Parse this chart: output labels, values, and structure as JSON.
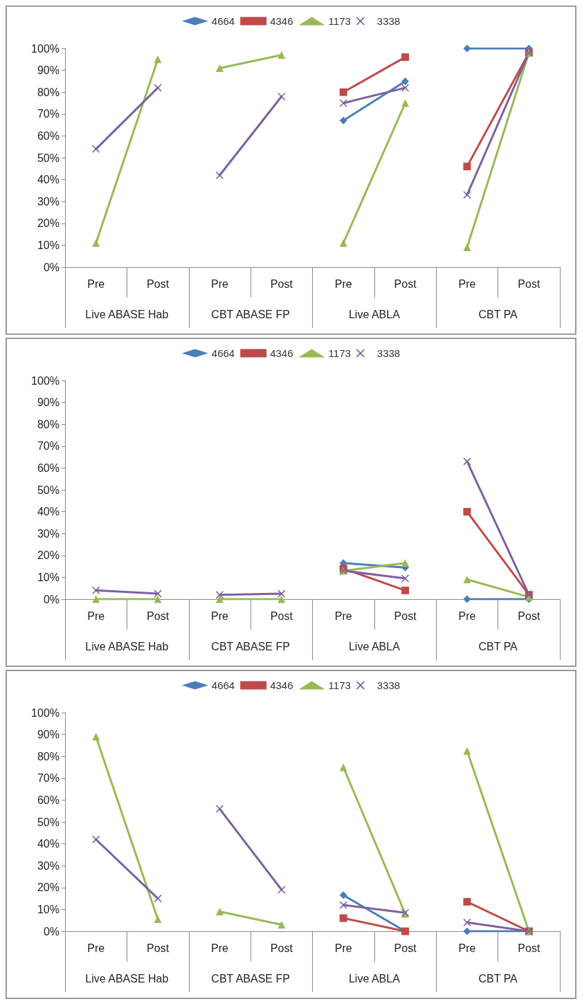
{
  "chart_data": [
    {
      "type": "line",
      "categories": [
        "Pre",
        "Post",
        "Pre",
        "Post",
        "Pre",
        "Post",
        "Pre",
        "Post"
      ],
      "annotations": [
        "Live ABASE Hab",
        "CBT ABASE FP",
        "Live ABLA",
        "CBT PA"
      ],
      "ylim": [
        0,
        100
      ],
      "yticks": [
        {
          "value": 0,
          "label": "0%"
        },
        {
          "value": 10,
          "label": "10%"
        },
        {
          "value": 20,
          "label": "20%"
        },
        {
          "value": 30,
          "label": "30%"
        },
        {
          "value": 40,
          "label": "40%"
        },
        {
          "value": 50,
          "label": "50%"
        },
        {
          "value": 60,
          "label": "60%"
        },
        {
          "value": 70,
          "label": "70%"
        },
        {
          "value": 80,
          "label": "80%"
        },
        {
          "value": 90,
          "label": "90%"
        },
        {
          "value": 100,
          "label": "100%"
        }
      ],
      "grid": false,
      "legend": "top",
      "series": [
        {
          "name": "4664",
          "color": "#4a7ebb",
          "marker": "diamond",
          "values": [
            null,
            null,
            null,
            null,
            67,
            85,
            100,
            100
          ]
        },
        {
          "name": "4346",
          "color": "#be4b48",
          "marker": "square",
          "values": [
            null,
            null,
            null,
            null,
            80,
            96,
            46,
            98
          ]
        },
        {
          "name": "1173",
          "color": "#98b954",
          "marker": "triangle",
          "values": [
            11,
            95,
            91,
            97,
            11,
            75,
            9,
            98
          ]
        },
        {
          "name": "3338",
          "color": "#7d5fa0",
          "marker": "cross",
          "values": [
            54,
            82,
            42,
            78,
            75,
            82,
            33,
            98
          ]
        }
      ]
    },
    {
      "type": "line",
      "categories": [
        "Pre",
        "Post",
        "Pre",
        "Post",
        "Pre",
        "Post",
        "Pre",
        "Post"
      ],
      "annotations": [
        "Live ABASE Hab",
        "CBT ABASE FP",
        "Live ABLA",
        "CBT PA"
      ],
      "ylim": [
        0,
        100
      ],
      "yticks": [
        {
          "value": 0,
          "label": "0%"
        },
        {
          "value": 10,
          "label": "10%"
        },
        {
          "value": 20,
          "label": "20%"
        },
        {
          "value": 30,
          "label": "30%"
        },
        {
          "value": 40,
          "label": "40%"
        },
        {
          "value": 50,
          "label": "50%"
        },
        {
          "value": 60,
          "label": "60%"
        },
        {
          "value": 70,
          "label": "70%"
        },
        {
          "value": 80,
          "label": "80%"
        },
        {
          "value": 90,
          "label": "90%"
        },
        {
          "value": 100,
          "label": "100%"
        }
      ],
      "grid": false,
      "legend": "top",
      "series": [
        {
          "name": "4664",
          "color": "#4a7ebb",
          "marker": "diamond",
          "values": [
            null,
            null,
            null,
            null,
            16.5,
            14.5,
            0,
            0
          ]
        },
        {
          "name": "4346",
          "color": "#be4b48",
          "marker": "square",
          "values": [
            null,
            null,
            null,
            null,
            14,
            4,
            40,
            2
          ]
        },
        {
          "name": "1173",
          "color": "#98b954",
          "marker": "triangle",
          "values": [
            0,
            0,
            0,
            0,
            13,
            16.5,
            9,
            1
          ]
        },
        {
          "name": "3338",
          "color": "#7d5fa0",
          "marker": "cross",
          "values": [
            4,
            2.5,
            2,
            2.5,
            13,
            9.5,
            63,
            2
          ]
        }
      ]
    },
    {
      "type": "line",
      "categories": [
        "Pre",
        "Post",
        "Pre",
        "Post",
        "Pre",
        "Post",
        "Pre",
        "Post"
      ],
      "annotations": [
        "Live ABASE Hab",
        "CBT ABASE FP",
        "Live ABLA",
        "CBT PA"
      ],
      "ylim": [
        0,
        100
      ],
      "yticks": [
        {
          "value": 0,
          "label": "0%"
        },
        {
          "value": 10,
          "label": "10%"
        },
        {
          "value": 20,
          "label": "20%"
        },
        {
          "value": 30,
          "label": "30%"
        },
        {
          "value": 40,
          "label": "40%"
        },
        {
          "value": 50,
          "label": "50%"
        },
        {
          "value": 60,
          "label": "60%"
        },
        {
          "value": 70,
          "label": "70%"
        },
        {
          "value": 80,
          "label": "80%"
        },
        {
          "value": 90,
          "label": "90%"
        },
        {
          "value": 100,
          "label": "100%"
        }
      ],
      "grid": false,
      "legend": "top",
      "series": [
        {
          "name": "4664",
          "color": "#4a7ebb",
          "marker": "diamond",
          "values": [
            null,
            null,
            null,
            null,
            16.5,
            0,
            0,
            0
          ]
        },
        {
          "name": "4346",
          "color": "#be4b48",
          "marker": "square",
          "values": [
            null,
            null,
            null,
            null,
            6,
            0,
            13.5,
            0
          ]
        },
        {
          "name": "1173",
          "color": "#98b954",
          "marker": "triangle",
          "values": [
            89,
            5.5,
            9,
            3,
            75,
            8,
            82.5,
            0
          ]
        },
        {
          "name": "3338",
          "color": "#7d5fa0",
          "marker": "cross",
          "values": [
            42,
            15,
            56,
            19,
            12,
            8.5,
            4,
            0
          ]
        }
      ]
    }
  ]
}
